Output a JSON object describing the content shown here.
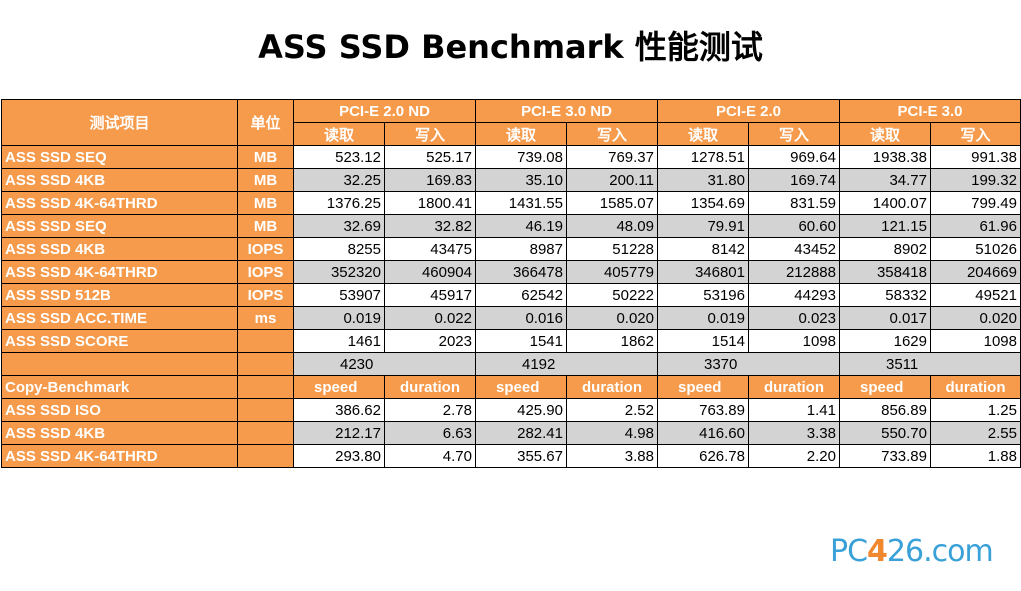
{
  "title": "ASS SSD Benchmark 性能测试",
  "logo": {
    "part1": "PC",
    "part2": "4",
    "part3": "26.com"
  },
  "colors": {
    "header_bg": "#f69a4b",
    "gray_row": "#d3d3d3"
  },
  "header": {
    "item": "测试项目",
    "unit": "单位",
    "groups": [
      "PCI-E 2.0 ND",
      "PCI-E 3.0 ND",
      "PCI-E 2.0",
      "PCI-E 3.0"
    ],
    "read": "读取",
    "write": "写入"
  },
  "rows": [
    {
      "label": "ASS SSD SEQ",
      "unit": "MB",
      "values": [
        "523.12",
        "525.17",
        "739.08",
        "769.37",
        "1278.51",
        "969.64",
        "1938.38",
        "991.38"
      ]
    },
    {
      "label": "ASS SSD 4KB",
      "unit": "MB",
      "values": [
        "32.25",
        "169.83",
        "35.10",
        "200.11",
        "31.80",
        "169.74",
        "34.77",
        "199.32"
      ]
    },
    {
      "label": "ASS SSD 4K-64THRD",
      "unit": "MB",
      "values": [
        "1376.25",
        "1800.41",
        "1431.55",
        "1585.07",
        "1354.69",
        "831.59",
        "1400.07",
        "799.49"
      ]
    },
    {
      "label": "ASS SSD SEQ",
      "unit": "MB",
      "values": [
        "32.69",
        "32.82",
        "46.19",
        "48.09",
        "79.91",
        "60.60",
        "121.15",
        "61.96"
      ]
    },
    {
      "label": "ASS SSD 4KB",
      "unit": "IOPS",
      "values": [
        "8255",
        "43475",
        "8987",
        "51228",
        "8142",
        "43452",
        "8902",
        "51026"
      ]
    },
    {
      "label": "ASS SSD 4K-64THRD",
      "unit": "IOPS",
      "values": [
        "352320",
        "460904",
        "366478",
        "405779",
        "346801",
        "212888",
        "358418",
        "204669"
      ]
    },
    {
      "label": "ASS SSD 512B",
      "unit": "IOPS",
      "values": [
        "53907",
        "45917",
        "62542",
        "50222",
        "53196",
        "44293",
        "58332",
        "49521"
      ]
    },
    {
      "label": "ASS SSD ACC.TIME",
      "unit": "ms",
      "values": [
        "0.019",
        "0.022",
        "0.016",
        "0.020",
        "0.019",
        "0.023",
        "0.017",
        "0.020"
      ]
    },
    {
      "label": "ASS SSD SCORE",
      "unit": "",
      "values": [
        "1461",
        "2023",
        "1541",
        "1862",
        "1514",
        "1098",
        "1629",
        "1098"
      ]
    }
  ],
  "totals": [
    "4230",
    "4192",
    "3370",
    "3511"
  ],
  "copy_header": {
    "label": "Copy-Benchmark",
    "speed": "speed",
    "duration": "duration"
  },
  "copy_rows": [
    {
      "label": "ASS SSD ISO",
      "values": [
        "386.62",
        "2.78",
        "425.90",
        "2.52",
        "763.89",
        "1.41",
        "856.89",
        "1.25"
      ]
    },
    {
      "label": "ASS SSD 4KB",
      "values": [
        "212.17",
        "6.63",
        "282.41",
        "4.98",
        "416.60",
        "3.38",
        "550.70",
        "2.55"
      ]
    },
    {
      "label": "ASS SSD 4K-64THRD",
      "values": [
        "293.80",
        "4.70",
        "355.67",
        "3.88",
        "626.78",
        "2.20",
        "733.89",
        "1.88"
      ]
    }
  ]
}
